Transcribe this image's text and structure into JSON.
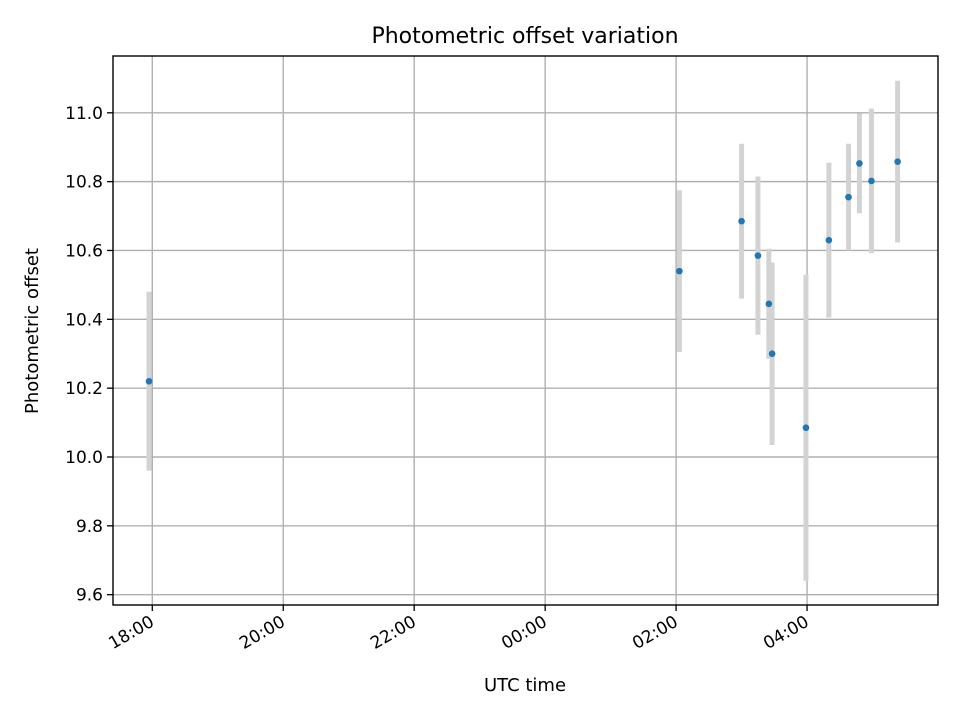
{
  "chart_data": {
    "type": "scatter",
    "title": "Photometric offset variation",
    "xlabel": "UTC time",
    "ylabel": "Photometric offset",
    "x_axis_type": "time",
    "xlim": [
      "17:24",
      "06:00"
    ],
    "ylim": [
      9.57,
      11.165
    ],
    "x_ticks": [
      "18:00",
      "20:00",
      "22:00",
      "00:00",
      "02:00",
      "04:00"
    ],
    "y_ticks": [
      9.6,
      9.8,
      10.0,
      10.2,
      10.4,
      10.6,
      10.8,
      11.0
    ],
    "grid": true,
    "legend": "none",
    "marker_color": "#1f77b4",
    "errorbar_color": "#d3d3d3",
    "series": [
      {
        "points": [
          {
            "x": "17:57",
            "y": 10.22,
            "yerr": 0.26
          },
          {
            "x": "02:03",
            "y": 10.54,
            "yerr": 0.235
          },
          {
            "x": "03:00",
            "y": 10.685,
            "yerr": 0.225
          },
          {
            "x": "03:15",
            "y": 10.585,
            "yerr": 0.23
          },
          {
            "x": "03:25",
            "y": 10.445,
            "yerr": 0.16
          },
          {
            "x": "03:28",
            "y": 10.3,
            "yerr": 0.265
          },
          {
            "x": "03:59",
            "y": 10.085,
            "yerr": 0.445
          },
          {
            "x": "04:20",
            "y": 10.63,
            "yerr": 0.225
          },
          {
            "x": "04:38",
            "y": 10.755,
            "yerr": 0.155
          },
          {
            "x": "04:48",
            "y": 10.853,
            "yerr": 0.145
          },
          {
            "x": "04:59",
            "y": 10.802,
            "yerr": 0.21
          },
          {
            "x": "05:23",
            "y": 10.858,
            "yerr": 0.235
          }
        ]
      }
    ]
  }
}
